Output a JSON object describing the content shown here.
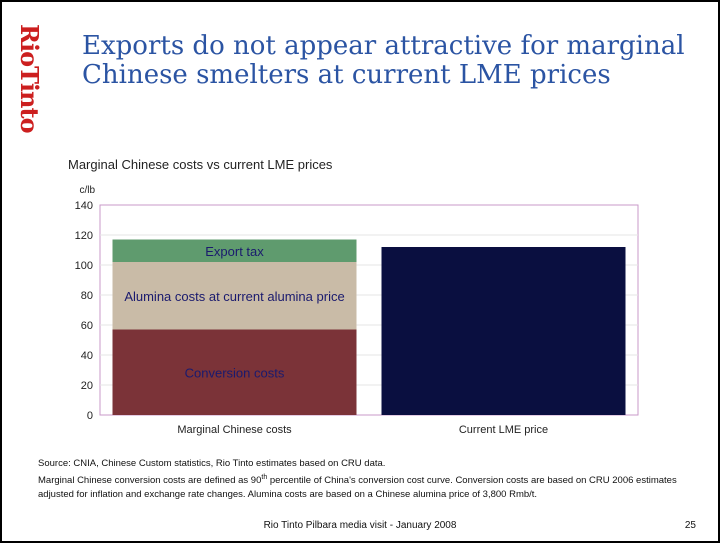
{
  "brand": {
    "logo_text": "RioTinto",
    "color": "#cc1f1f"
  },
  "slide": {
    "title": "Exports do not appear attractive for marginal Chinese smelters at current LME prices",
    "source_line": "Source: CNIA, Chinese Custom statistics, Rio Tinto estimates based on CRU data.",
    "note_pre": "Marginal Chinese conversion costs are defined as 90",
    "note_sup": "th",
    "note_post": " percentile of China's conversion cost curve.  Conversion costs are based on CRU 2006 estimates adjusted for inflation and exchange rate changes.  Alumina costs are based on a Chinese alumina price of 3,800 Rmb/t.",
    "footer": "Rio Tinto Pilbara media visit - January 2008",
    "page_number": "25"
  },
  "chart_data": {
    "type": "bar",
    "stacked": true,
    "title": "Marginal Chinese costs vs current LME prices",
    "ylabel": "c/lb",
    "ylim": [
      0,
      140
    ],
    "yticks": [
      0,
      20,
      40,
      60,
      80,
      100,
      120,
      140
    ],
    "categories": [
      "Marginal Chinese costs",
      "Current LME price"
    ],
    "series": [
      {
        "name": "Conversion costs",
        "values": [
          57,
          0
        ],
        "color": "#7b3338"
      },
      {
        "name": "Alumina costs at current alumina price",
        "values": [
          45,
          0
        ],
        "color": "#c9bba7"
      },
      {
        "name": "Export tax",
        "values": [
          15,
          0
        ],
        "color": "#5f9b6e"
      },
      {
        "name": "",
        "values": [
          0,
          112
        ],
        "color": "#0a0f40"
      }
    ],
    "plot_border_color": "#c99ac9",
    "grid": true,
    "legend": "none"
  }
}
